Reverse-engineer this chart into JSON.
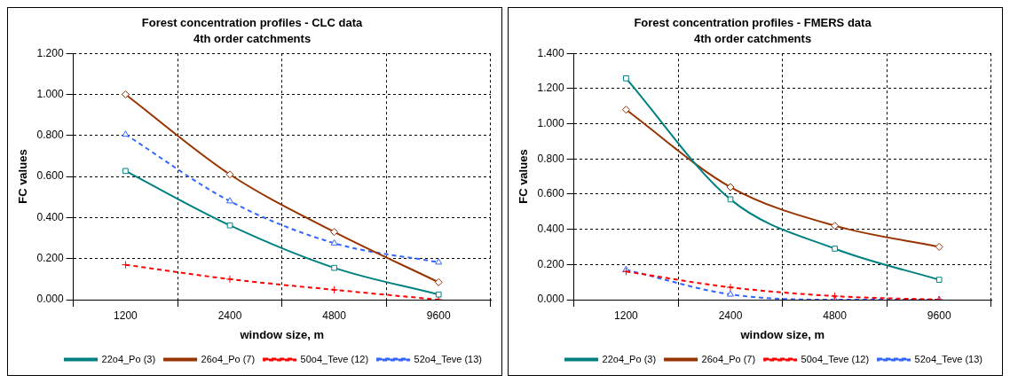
{
  "chart_data": [
    {
      "type": "line",
      "title": "Forest concentration profiles - CLC data",
      "subtitle": "4th order catchments",
      "xlabel": "window size, m",
      "ylabel": "FC values",
      "categories": [
        "1200",
        "2400",
        "4800",
        "9600"
      ],
      "ylim": [
        0,
        1.2
      ],
      "yticks": [
        {
          "value": 0,
          "label": "0.000"
        },
        {
          "value": 0.2,
          "label": "0.200"
        },
        {
          "value": 0.4,
          "label": "0.400"
        },
        {
          "value": 0.6,
          "label": "0.600"
        },
        {
          "value": 0.8,
          "label": "0.800"
        },
        {
          "value": 1,
          "label": "1.000"
        },
        {
          "value": 1.2,
          "label": "1.200"
        }
      ],
      "grid": true,
      "legend": "bottom right",
      "series": [
        {
          "name": "22o4_Po (3)",
          "color": "#008080",
          "marker": "square",
          "line_style": "solid",
          "values": [
            0.627,
            0.362,
            0.155,
            0.025
          ]
        },
        {
          "name": "26o4_Po (7)",
          "color": "#993300",
          "marker": "diamond",
          "line_style": "solid",
          "values": [
            1.0,
            0.61,
            0.33,
            0.085
          ]
        },
        {
          "name": "50o4_Teve (12)",
          "color": "#ff0000",
          "marker": "cross",
          "line_style": "dashed",
          "values": [
            0.17,
            0.1,
            0.048,
            0.0
          ]
        },
        {
          "name": "52o4_Teve (13)",
          "color": "#3366ff",
          "marker": "triangle",
          "line_style": "dashed",
          "values": [
            0.805,
            0.48,
            0.275,
            0.182
          ]
        }
      ]
    },
    {
      "type": "line",
      "title": "Forest concentration profiles - FMERS data",
      "subtitle": "4th order catchments",
      "xlabel": "window size, m",
      "ylabel": "FC values",
      "categories": [
        "1200",
        "2400",
        "4800",
        "9600"
      ],
      "ylim": [
        0,
        1.4
      ],
      "yticks": [
        {
          "value": 0,
          "label": "0.000"
        },
        {
          "value": 0.2,
          "label": "0.200"
        },
        {
          "value": 0.4,
          "label": "0.400"
        },
        {
          "value": 0.6,
          "label": "0.600"
        },
        {
          "value": 0.8,
          "label": "0.800"
        },
        {
          "value": 1,
          "label": "1.000"
        },
        {
          "value": 1.2,
          "label": "1.200"
        },
        {
          "value": 1.4,
          "label": "1.400"
        }
      ],
      "grid": true,
      "legend": "bottom right",
      "series": [
        {
          "name": "22o4_Po (3)",
          "color": "#008080",
          "marker": "square",
          "line_style": "solid",
          "values": [
            1.258,
            0.57,
            0.29,
            0.113
          ]
        },
        {
          "name": "26o4_Po (7)",
          "color": "#993300",
          "marker": "diamond",
          "line_style": "solid",
          "values": [
            1.08,
            0.64,
            0.42,
            0.3
          ]
        },
        {
          "name": "50o4_Teve (12)",
          "color": "#ff0000",
          "marker": "cross",
          "line_style": "dashed",
          "values": [
            0.16,
            0.07,
            0.02,
            0.0
          ]
        },
        {
          "name": "52o4_Teve (13)",
          "color": "#3366ff",
          "marker": "triangle",
          "line_style": "dashed",
          "values": [
            0.17,
            0.03,
            0.0,
            0.0
          ]
        }
      ]
    }
  ]
}
